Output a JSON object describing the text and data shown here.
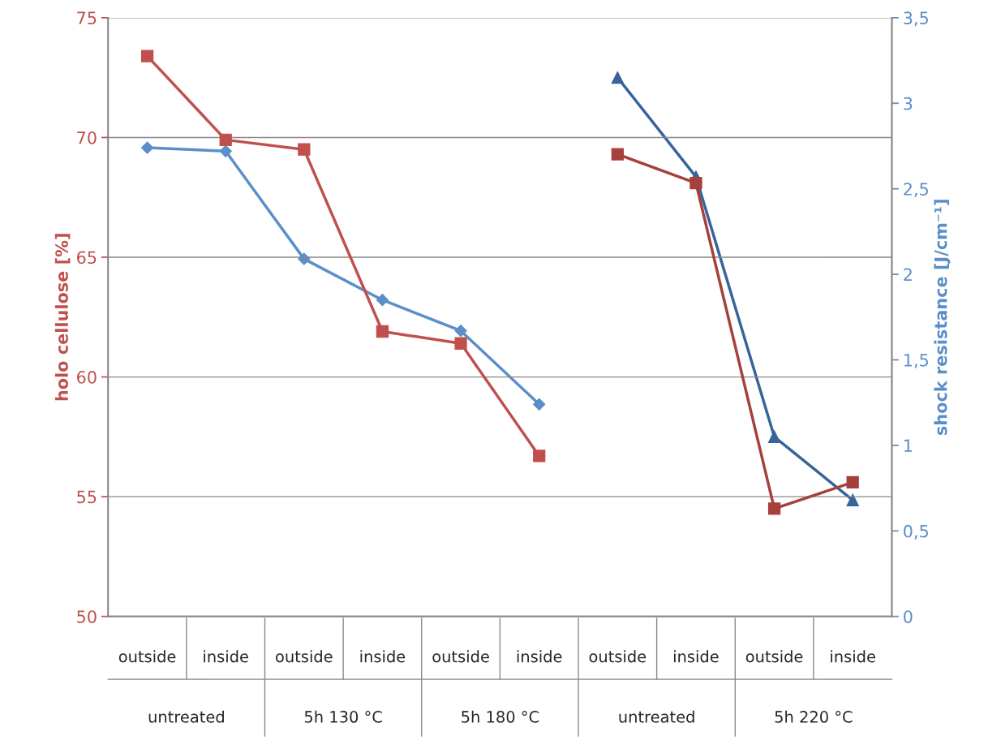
{
  "chart_data": {
    "type": "line",
    "categories": [
      "outside",
      "inside",
      "outside",
      "inside",
      "outside",
      "inside",
      "outside",
      "inside",
      "outside",
      "inside"
    ],
    "annotations": [
      "untreated",
      "5h 130 °C",
      "5h 180 °C",
      "untreated",
      "5h 220 °C"
    ],
    "ylabel": "holo cellulose [%]",
    "y2label": "shock resistance [J/cm⁻¹]",
    "series": [
      {
        "color": "#c0504d",
        "marker": "square",
        "values": [
          73.4,
          69.9,
          69.5,
          61.9,
          61.4,
          56.7,
          null,
          null,
          null,
          null
        ]
      },
      {
        "color": "#a5403c",
        "marker": "square",
        "values": [
          null,
          null,
          null,
          null,
          null,
          null,
          69.3,
          68.1,
          54.5,
          55.6
        ]
      },
      {
        "color": "#5b8fc9",
        "marker": "diamond",
        "axis": "y2",
        "values": [
          2.74,
          2.72,
          2.09,
          1.85,
          1.67,
          1.24,
          null,
          null,
          null,
          null
        ]
      },
      {
        "color": "#36649b",
        "marker": "triangle",
        "axis": "y2",
        "values": [
          null,
          null,
          null,
          null,
          null,
          null,
          3.15,
          2.57,
          1.05,
          0.68
        ]
      }
    ],
    "ylim": [
      50,
      75
    ],
    "yticks": [
      50,
      55,
      60,
      65,
      70,
      75
    ],
    "y2lim": [
      0,
      3.5
    ],
    "y2ticks": [
      0,
      {
        "value": 0.5,
        "label": "0,5"
      },
      1,
      {
        "value": 1.5,
        "label": "1,5"
      },
      2,
      {
        "value": 2.5,
        "label": "2,5"
      },
      3,
      {
        "value": 3.5,
        "label": "3,5"
      }
    ],
    "grid": "y",
    "legend": false,
    "line_style": "solid"
  }
}
